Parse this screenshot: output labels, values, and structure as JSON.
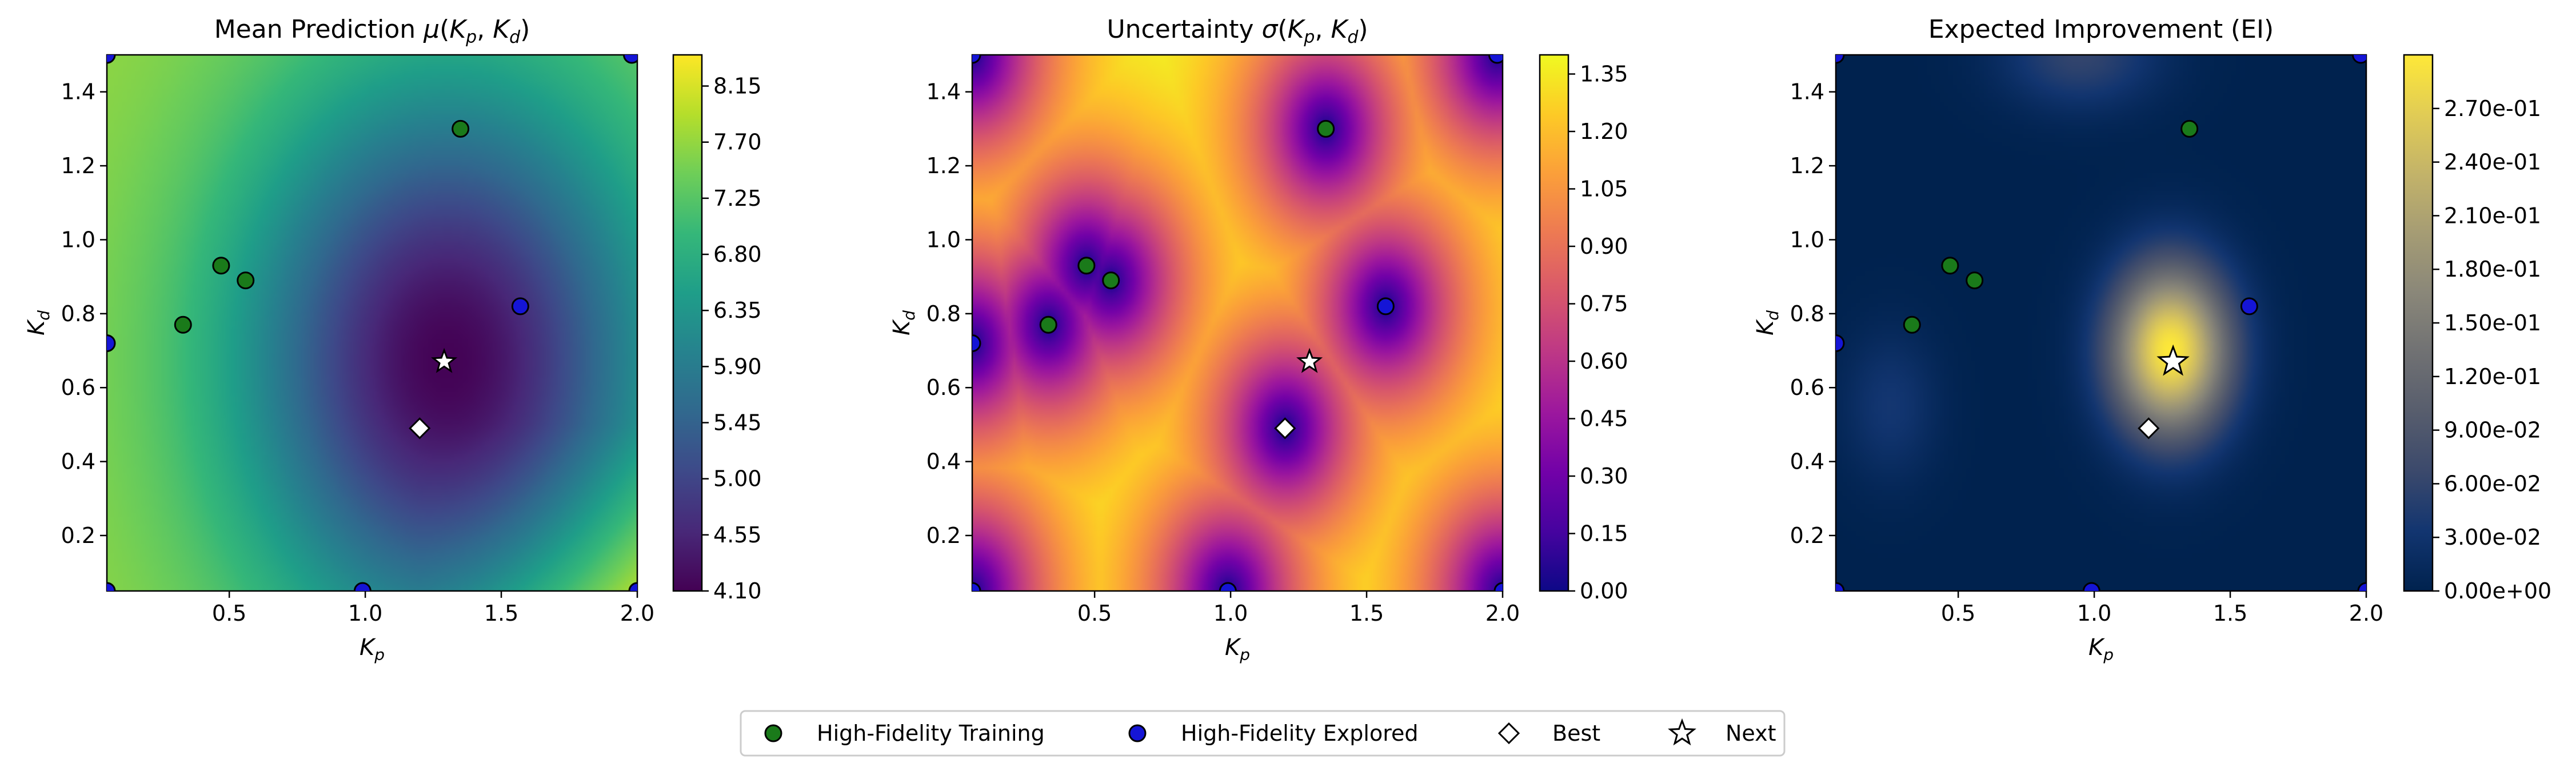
{
  "chart_data": [
    {
      "type": "heatmap",
      "title_main": "Mean Prediction ",
      "title_math": "μ",
      "xlabel": "K",
      "xlabel_sub": "p",
      "ylabel": "K",
      "ylabel_sub": "d",
      "xlim": [
        0.05,
        2.0
      ],
      "ylim": [
        0.05,
        1.5
      ],
      "x_ticks": [
        "0.5",
        "1.0",
        "1.5",
        "2.0"
      ],
      "y_ticks": [
        "0.2",
        "0.4",
        "0.6",
        "0.8",
        "1.0",
        "1.2",
        "1.4"
      ],
      "colormap": "viridis",
      "colorbar_range": [
        4.1,
        8.4
      ],
      "colorbar_ticks": [
        "4.10",
        "4.55",
        "5.00",
        "5.45",
        "5.90",
        "6.35",
        "6.80",
        "7.25",
        "7.70",
        "8.15"
      ]
    },
    {
      "type": "heatmap",
      "title_main": "Uncertainty ",
      "title_math": "σ",
      "xlabel": "K",
      "xlabel_sub": "p",
      "ylabel": "K",
      "ylabel_sub": "d",
      "xlim": [
        0.05,
        2.0
      ],
      "ylim": [
        0.05,
        1.5
      ],
      "x_ticks": [
        "0.5",
        "1.0",
        "1.5",
        "2.0"
      ],
      "y_ticks": [
        "0.2",
        "0.4",
        "0.6",
        "0.8",
        "1.0",
        "1.2",
        "1.4"
      ],
      "colormap": "plasma",
      "colorbar_range": [
        0.0,
        1.4
      ],
      "colorbar_ticks": [
        "0.00",
        "0.15",
        "0.30",
        "0.45",
        "0.60",
        "0.75",
        "0.90",
        "1.05",
        "1.20",
        "1.35"
      ]
    },
    {
      "type": "heatmap",
      "title_main": "Expected Improvement (EI)",
      "title_math": "",
      "xlabel": "K",
      "xlabel_sub": "p",
      "ylabel": "K",
      "ylabel_sub": "d",
      "xlim": [
        0.05,
        2.0
      ],
      "ylim": [
        0.05,
        1.5
      ],
      "x_ticks": [
        "0.5",
        "1.0",
        "1.5",
        "2.0"
      ],
      "y_ticks": [
        "0.2",
        "0.4",
        "0.6",
        "0.8",
        "1.0",
        "1.2",
        "1.4"
      ],
      "colormap": "cividis",
      "colorbar_range": [
        0.0,
        0.3
      ],
      "colorbar_ticks": [
        "0.00e+00",
        "3.00e-02",
        "6.00e-02",
        "9.00e-02",
        "1.20e-01",
        "1.50e-01",
        "1.80e-01",
        "2.10e-01",
        "2.40e-01",
        "2.70e-01"
      ]
    }
  ],
  "points": {
    "high_fidelity_training": [
      [
        0.33,
        0.77
      ],
      [
        0.47,
        0.93
      ],
      [
        0.56,
        0.89
      ],
      [
        1.35,
        1.3
      ]
    ],
    "high_fidelity_explored": [
      [
        0.05,
        1.5
      ],
      [
        1.98,
        1.5
      ],
      [
        0.05,
        0.72
      ],
      [
        1.57,
        0.82
      ],
      [
        0.99,
        0.05
      ],
      [
        0.05,
        0.05
      ],
      [
        2.0,
        0.05
      ]
    ],
    "best": [
      [
        1.2,
        0.49
      ]
    ],
    "next": [
      [
        1.29,
        0.67
      ]
    ]
  },
  "legend": {
    "placement": "bottom-center",
    "items": [
      {
        "label": "High-Fidelity Training",
        "marker": "circle",
        "color": "#1a7a1a"
      },
      {
        "label": "High-Fidelity Explored",
        "marker": "circle",
        "color": "#1515d6"
      },
      {
        "label": "Best",
        "marker": "diamond",
        "color": "#ffffff"
      },
      {
        "label": "Next",
        "marker": "star",
        "color": "#ffffff"
      }
    ]
  },
  "title_args": "(K, K)",
  "title_subs": [
    "p",
    "d"
  ]
}
